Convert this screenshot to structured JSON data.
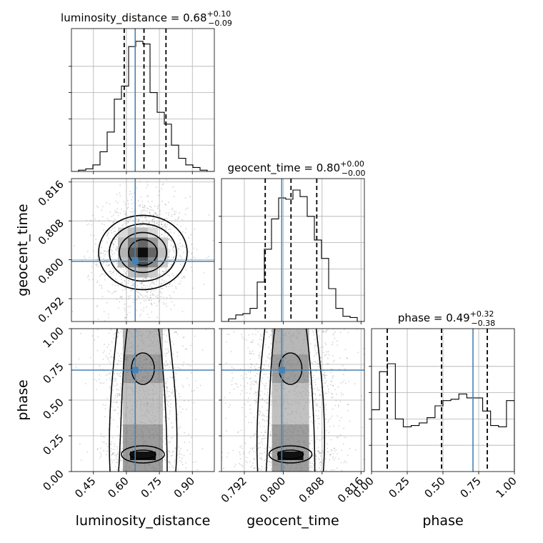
{
  "chart_data": {
    "type": "corner",
    "parameters": [
      {
        "name": "luminosity_distance",
        "range": [
          0.35,
          1.0
        ],
        "ticks": [
          0.45,
          0.6,
          0.75,
          0.9
        ],
        "tick_labels": [
          "0.45",
          "0.60",
          "0.75",
          "0.90"
        ],
        "truth": 0.64,
        "quantiles": [
          0.59,
          0.68,
          0.78
        ],
        "title_value": "0.68",
        "title_plus": "+0.10",
        "title_minus": "−0.09"
      },
      {
        "name": "geocent_time",
        "range": [
          0.7873,
          0.8167
        ],
        "ticks": [
          0.792,
          0.8,
          0.808,
          0.816
        ],
        "tick_labels": [
          "0.792",
          "0.800",
          "0.808",
          "0.816"
        ],
        "truth": 0.7997,
        "quantiles": [
          0.7963,
          0.8016,
          0.8069
        ],
        "title_value": "0.80",
        "title_plus": "+0.00",
        "title_minus": "−0.00"
      },
      {
        "name": "phase",
        "range": [
          0.0,
          1.0
        ],
        "ticks": [
          0.0,
          0.25,
          0.5,
          0.75,
          1.0
        ],
        "tick_labels": [
          "0.00",
          "0.25",
          "0.50",
          "0.75",
          "1.00"
        ],
        "truth": 0.71,
        "quantiles": [
          0.11,
          0.49,
          0.81
        ],
        "title_value": "0.49",
        "title_plus": "+0.32",
        "title_minus": "−0.38"
      }
    ],
    "histograms": [
      {
        "param": "luminosity_distance",
        "ylim": [
          0,
          1.0
        ],
        "values": [
          0.0,
          0.01,
          0.02,
          0.05,
          0.15,
          0.3,
          0.55,
          0.65,
          0.95,
          0.99,
          0.97,
          0.6,
          0.45,
          0.36,
          0.2,
          0.1,
          0.05,
          0.03,
          0.01,
          0.0
        ]
      },
      {
        "param": "geocent_time",
        "ylim": [
          0,
          1.0
        ],
        "values": [
          0.0,
          0.02,
          0.05,
          0.06,
          0.1,
          0.3,
          0.55,
          0.78,
          0.94,
          0.93,
          1.0,
          0.95,
          0.8,
          0.62,
          0.48,
          0.25,
          0.1,
          0.04,
          0.03,
          0.0
        ]
      },
      {
        "param": "phase",
        "ylim": [
          0,
          1.0
        ],
        "values": [
          0.47,
          0.76,
          0.82,
          0.4,
          0.34,
          0.35,
          0.37,
          0.41,
          0.5,
          0.54,
          0.55,
          0.59,
          0.56,
          0.56,
          0.46,
          0.35,
          0.34,
          0.54
        ]
      }
    ],
    "grid": true,
    "truth_color": "#4682b4",
    "line_color": "#000000"
  }
}
